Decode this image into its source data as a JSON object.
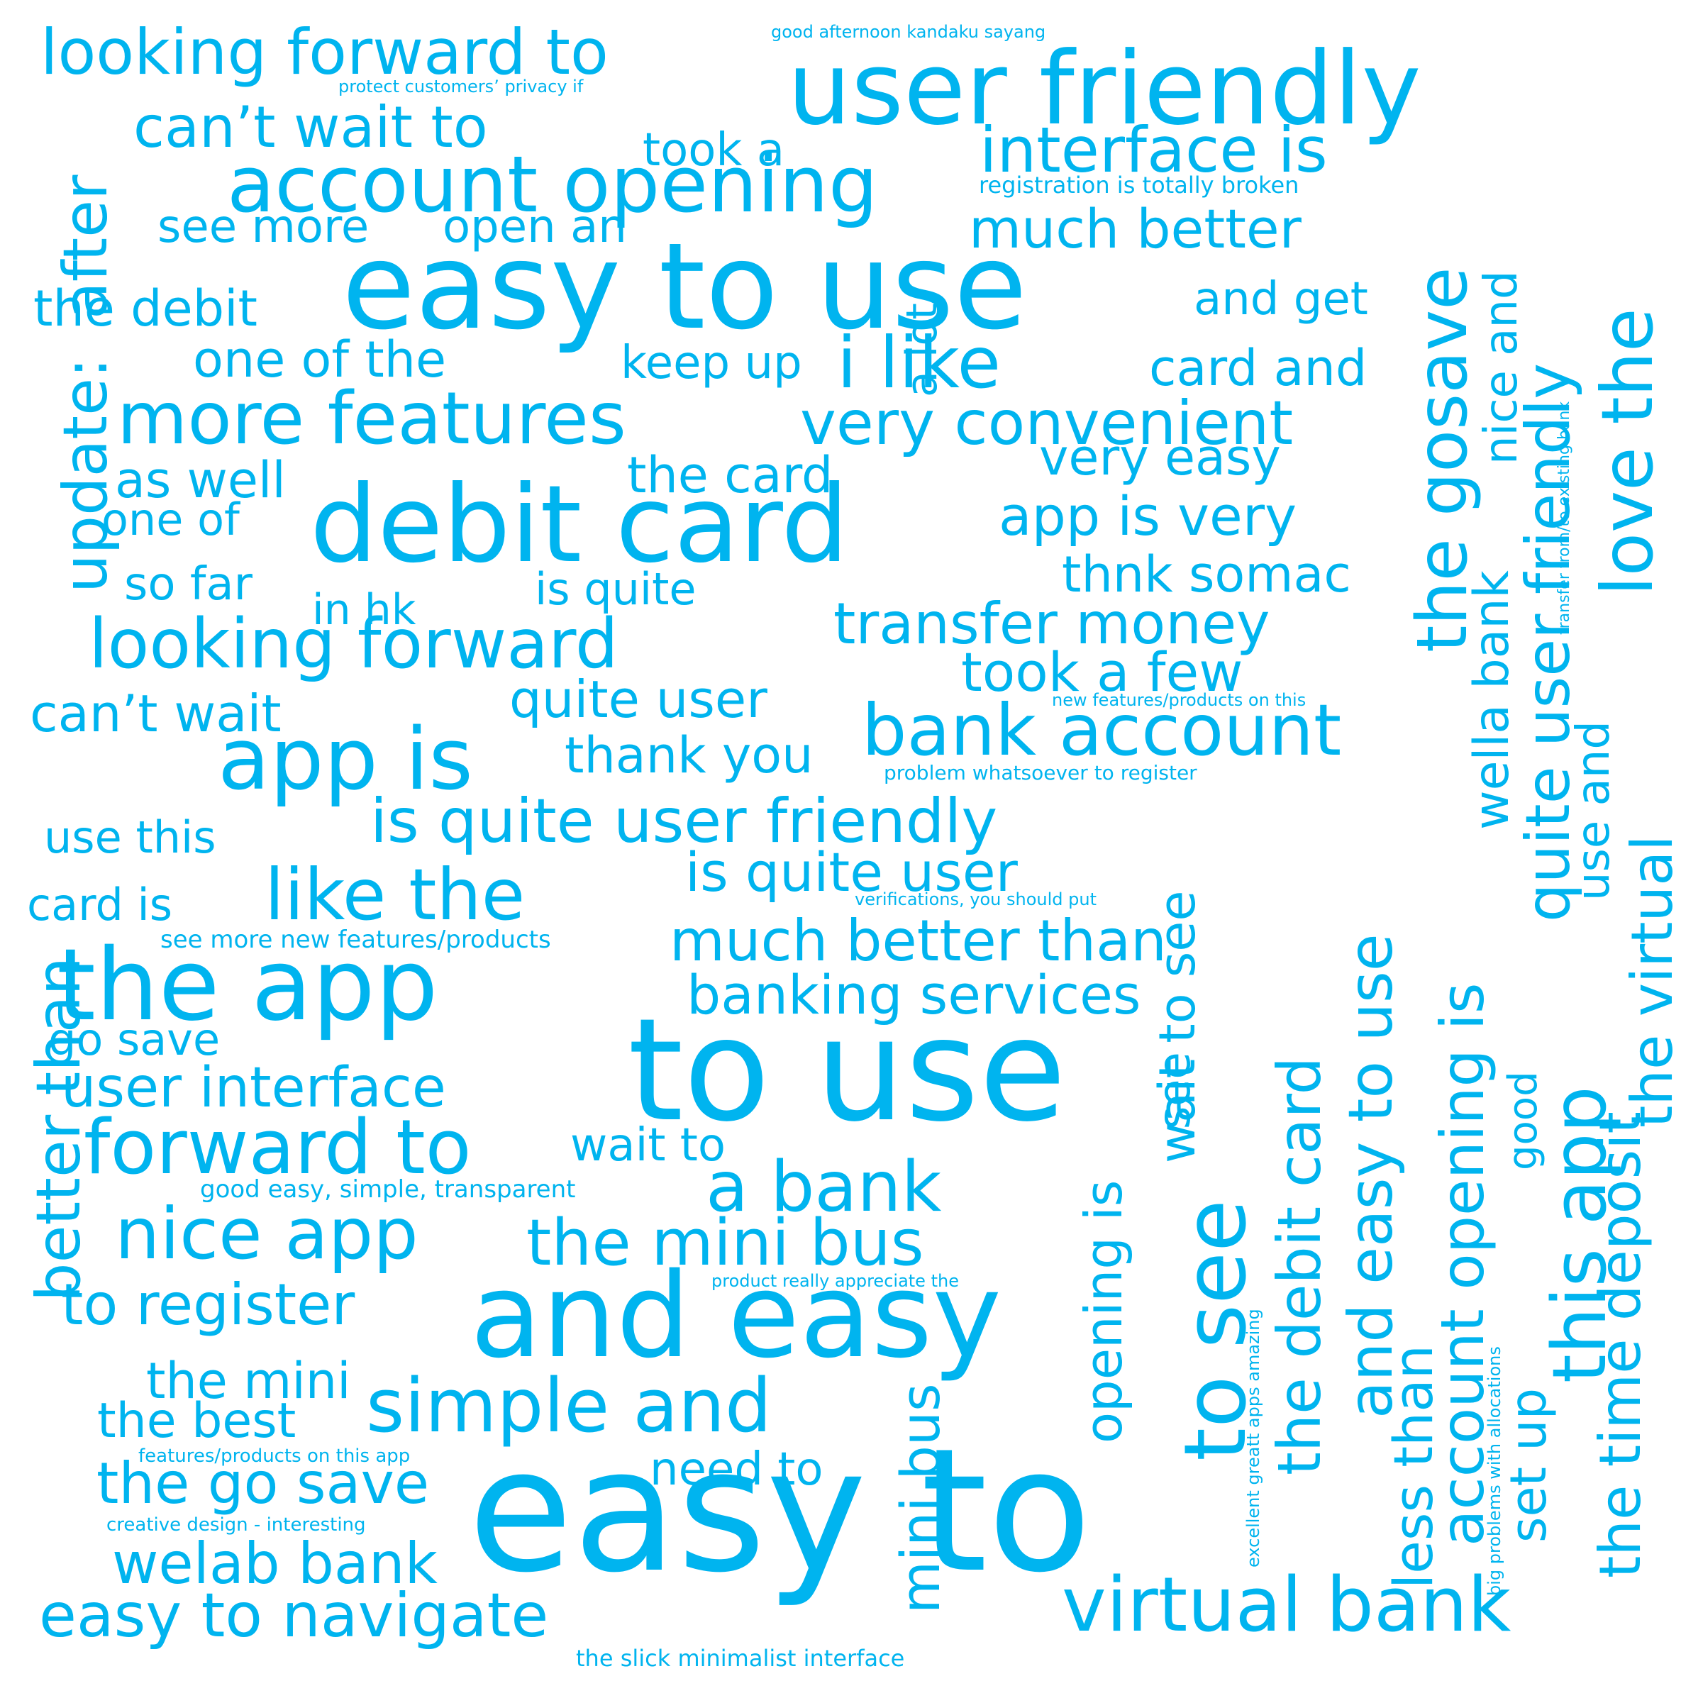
{
  "colors": {
    "background": "#ffffff",
    "word": "#00b4ef"
  },
  "words": [
    "looking forward to",
    "user friendly",
    "good afternoon kandaku sayang",
    "protect customers’ privacy if",
    "can’t wait to",
    "took a",
    "interface is",
    "account opening",
    "registration is totally broken",
    "see more",
    "open an",
    "much better",
    "easy to use",
    "the debit",
    "and get",
    "one of the",
    "keep up",
    "i like",
    "card and",
    "more features",
    "very convenient",
    "very easy",
    "as well",
    "the card",
    "debit card",
    "app is very",
    "one of",
    "thnk somac",
    "so far",
    "is quite",
    "in hk",
    "transfer money",
    "looking forward",
    "took a few",
    "can’t wait",
    "quite user",
    "new features/products on this",
    "app is",
    "bank account",
    "thank you",
    "problem whatsoever to register",
    "is quite user friendly",
    "use this",
    "is quite user",
    "like the",
    "card is",
    "verifications, you should put",
    "see more new features/products",
    "much better than",
    "the app",
    "banking services",
    "to use",
    "go save",
    "user interface",
    "forward to",
    "wait to",
    "a bank",
    "good easy, simple, transparent",
    "nice app",
    "the mini bus",
    "product really appreciate the",
    "and easy",
    "to register",
    "the mini",
    "simple and",
    "the best",
    "features/products on this app",
    "need to",
    "the go save",
    "creative design - interesting",
    "easy to",
    "welab bank",
    "easy to navigate",
    "virtual bank",
    "the slick minimalist interface",
    "after",
    "update:",
    "better than",
    "a lot",
    "the gosave",
    "nice and",
    "love the",
    "quite user friendly",
    "wella bank",
    "the virtual",
    "transfer from/to existing bank",
    "use and",
    "this app",
    "the time deposit",
    "good",
    "account opening is",
    "and easy to use",
    "the debit card",
    "to see",
    "wait to see",
    "opening is",
    "see",
    "mini bus",
    "less than",
    "set up",
    "big problems with allocations",
    "excellent greatt apps amazing"
  ]
}
